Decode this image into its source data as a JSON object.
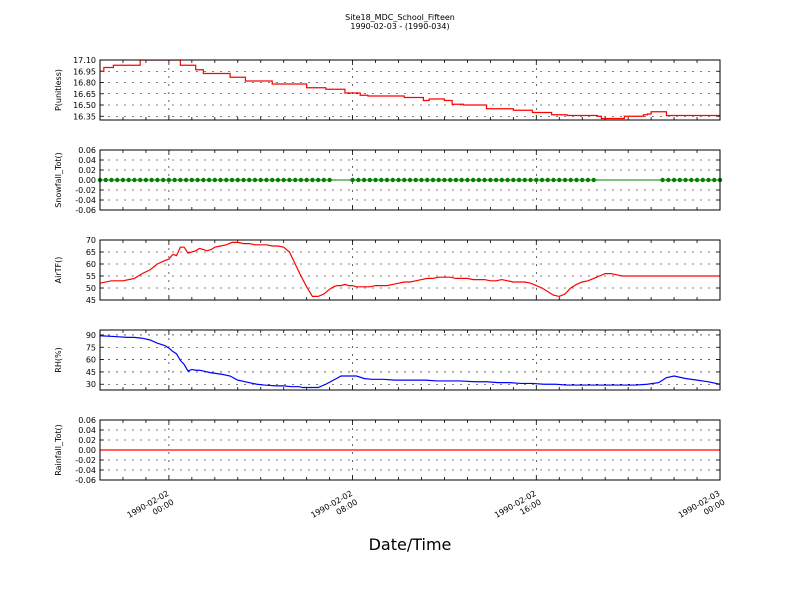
{
  "title": "Site18_MDC_School_Fifteen",
  "subtitle": "1990-02-03 - (1990-034)",
  "xlabel": "Date/Time",
  "x_ticks": [
    {
      "t": 0,
      "line1": "1990-02-02",
      "line2": "00:00"
    },
    {
      "t": 480,
      "line1": "1990-02-02",
      "line2": "08:00"
    },
    {
      "t": 960,
      "line1": "1990-02-02",
      "line2": "16:00"
    },
    {
      "t": 1440,
      "line1": "1990-02-03",
      "line2": "00:00"
    }
  ],
  "chart_data": [
    {
      "type": "line",
      "ylabel": "P(unitless)",
      "color": "#ff0000",
      "ylim": [
        16.3,
        17.1
      ],
      "yticks": [
        "16.35",
        "16.50",
        "16.65",
        "16.80",
        "16.95",
        "17.10"
      ],
      "yticks_values": [
        16.35,
        16.5,
        16.65,
        16.8,
        16.95,
        17.1
      ],
      "step": true,
      "x_unit": "minutes since 1990-02-02 00:00",
      "series": [
        {
          "x": [
            -180,
            -170,
            -145,
            -80,
            -75,
            -10,
            30,
            70,
            90,
            160,
            200,
            270,
            310,
            360,
            410,
            460,
            500,
            520,
            550,
            560,
            615,
            665,
            680,
            720,
            740,
            770,
            800,
            830,
            860,
            900,
            950,
            1000,
            1040,
            1090,
            1120,
            1130,
            1190,
            1240,
            1250,
            1260,
            1280,
            1300,
            1330,
            1360,
            1420,
            1440
          ],
          "y": [
            16.95,
            17.0,
            17.03,
            17.03,
            17.1,
            17.1,
            17.03,
            16.97,
            16.92,
            16.87,
            16.82,
            16.78,
            16.78,
            16.73,
            16.71,
            16.66,
            16.63,
            16.62,
            16.62,
            16.62,
            16.6,
            16.56,
            16.58,
            16.56,
            16.51,
            16.5,
            16.5,
            16.45,
            16.45,
            16.43,
            16.4,
            16.37,
            16.36,
            16.36,
            16.35,
            16.32,
            16.35,
            16.37,
            16.38,
            16.41,
            16.41,
            16.36,
            16.36,
            16.36,
            16.36,
            16.35
          ]
        }
      ]
    },
    {
      "type": "scatter",
      "ylabel": "Snowfall_Tot()",
      "color": "#008000",
      "ylim": [
        -0.06,
        0.06
      ],
      "yticks": [
        "-0.06",
        "-0.04",
        "-0.02",
        "0.00",
        "0.02",
        "0.04",
        "0.06"
      ],
      "yticks_values": [
        -0.06,
        -0.04,
        -0.02,
        0.0,
        0.02,
        0.04,
        0.06
      ],
      "x_unit": "minutes since 1990-02-02 00:00",
      "points_start": -180,
      "points_end": 1440,
      "points_every": 15,
      "gaps": [
        [
          430,
          475
        ],
        [
          1110,
          1280
        ]
      ],
      "value": 0
    },
    {
      "type": "line",
      "ylabel": "AirTF()",
      "color": "#ff0000",
      "ylim": [
        45,
        70
      ],
      "yticks": [
        "45",
        "50",
        "55",
        "60",
        "65",
        "70"
      ],
      "yticks_values": [
        45,
        50,
        55,
        60,
        65,
        70
      ],
      "x_unit": "minutes since 1990-02-02 00:00",
      "series": [
        {
          "x": [
            -180,
            -150,
            -120,
            -90,
            -70,
            -50,
            -30,
            -10,
            0,
            10,
            20,
            30,
            40,
            50,
            60,
            70,
            80,
            90,
            100,
            110,
            120,
            135,
            150,
            165,
            180,
            195,
            210,
            225,
            240,
            255,
            270,
            285,
            300,
            315,
            330,
            345,
            360,
            375,
            390,
            405,
            420,
            430,
            440,
            450,
            460,
            470,
            480,
            490,
            500,
            510,
            525,
            540,
            555,
            570,
            585,
            600,
            615,
            630,
            645,
            660,
            675,
            690,
            705,
            720,
            735,
            750,
            765,
            780,
            795,
            810,
            825,
            840,
            855,
            870,
            885,
            900,
            915,
            930,
            945,
            960,
            975,
            990,
            1005,
            1020,
            1035,
            1050,
            1065,
            1080,
            1095,
            1110,
            1125,
            1140,
            1155,
            1170,
            1185,
            1200,
            1215,
            1230,
            1245,
            1260,
            1275,
            1290,
            1305,
            1320,
            1335,
            1350,
            1365,
            1380,
            1395,
            1410,
            1425,
            1440
          ],
          "y": [
            52,
            53,
            53,
            54,
            56,
            57.5,
            60,
            61.5,
            62,
            64,
            63.5,
            67,
            67,
            64.5,
            65,
            65.5,
            66.5,
            66,
            65.5,
            66,
            67,
            67.5,
            68,
            69,
            69,
            68.5,
            68.5,
            68,
            68,
            68,
            67.5,
            67.5,
            67,
            65,
            60,
            55,
            50.5,
            46.5,
            46.5,
            47.5,
            49.5,
            50.5,
            51,
            51,
            51.5,
            51,
            51,
            50.5,
            50.5,
            50.5,
            50.5,
            51,
            51,
            51,
            51.5,
            52,
            52.5,
            52.5,
            53,
            53.5,
            54,
            54,
            54.5,
            54.5,
            54.5,
            54,
            54,
            54,
            53.5,
            53.5,
            53.5,
            53,
            53,
            53.5,
            53,
            52.5,
            52.5,
            52.5,
            52,
            51,
            50,
            48.5,
            47,
            46.5,
            47.5,
            50,
            51.5,
            52.5,
            53,
            54,
            55,
            56,
            56,
            55.5,
            55,
            55,
            55,
            55,
            55,
            55,
            55,
            55,
            55,
            55,
            55,
            55,
            55,
            55,
            55,
            55,
            55,
            55
          ]
        }
      ]
    },
    {
      "type": "line",
      "ylabel": "RH(%)",
      "color": "#0000ff",
      "ylim": [
        23,
        96
      ],
      "yticks": [
        "30",
        "45",
        "60",
        "75",
        "90"
      ],
      "yticks_values": [
        30,
        45,
        60,
        75,
        90
      ],
      "x_unit": "minutes since 1990-02-02 00:00",
      "series": [
        {
          "x": [
            -180,
            -140,
            -110,
            -90,
            -70,
            -50,
            -30,
            -10,
            0,
            10,
            20,
            30,
            40,
            50,
            60,
            70,
            80,
            90,
            110,
            140,
            160,
            180,
            200,
            230,
            250,
            280,
            300,
            320,
            340,
            350,
            370,
            390,
            410,
            430,
            450,
            470,
            490,
            510,
            530,
            560,
            590,
            610,
            640,
            670,
            700,
            730,
            760,
            800,
            830,
            860,
            890,
            920,
            950,
            980,
            1010,
            1040,
            1070,
            1100,
            1130,
            1160,
            1190,
            1220,
            1250,
            1280,
            1300,
            1320,
            1350,
            1380,
            1410,
            1440
          ],
          "y": [
            89,
            88,
            87,
            87,
            86,
            84,
            80,
            77,
            74,
            70,
            67,
            59,
            54,
            46,
            48,
            47,
            47,
            46,
            44,
            42,
            40,
            35,
            33,
            30,
            29,
            28,
            28,
            27,
            27,
            26,
            26,
            26,
            30,
            35,
            40,
            40,
            40,
            37,
            36,
            36,
            35,
            35,
            35,
            35,
            34,
            34,
            34,
            33,
            33,
            32,
            32,
            31,
            31,
            30,
            30,
            29,
            29,
            29,
            29,
            29,
            29,
            29,
            30,
            32,
            38,
            40,
            37,
            35,
            33,
            30
          ]
        }
      ]
    },
    {
      "type": "line",
      "ylabel": "Rainfall_Tot()",
      "color": "#ff0000",
      "ylim": [
        -0.06,
        0.06
      ],
      "yticks": [
        "-0.06",
        "-0.04",
        "-0.02",
        "0.00",
        "0.02",
        "0.04",
        "0.06"
      ],
      "yticks_values": [
        -0.06,
        -0.04,
        -0.02,
        0.0,
        0.02,
        0.04,
        0.06
      ],
      "x_unit": "minutes since 1990-02-02 00:00",
      "series": [
        {
          "x": [
            -180,
            1440
          ],
          "y": [
            0,
            0
          ]
        }
      ]
    }
  ]
}
